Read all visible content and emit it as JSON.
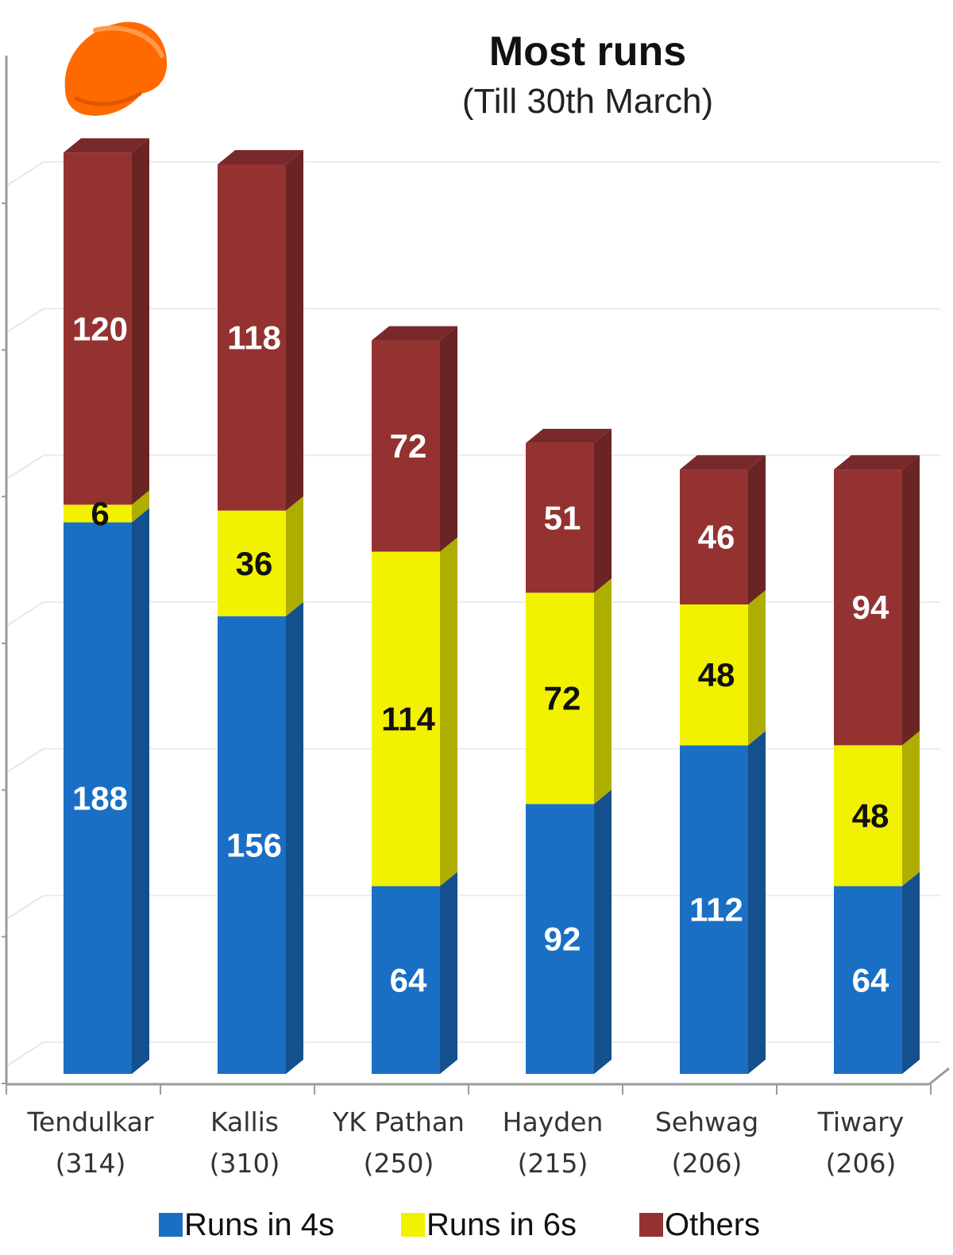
{
  "chart_data": {
    "type": "bar",
    "stacked": true,
    "title": "Most runs",
    "subtitle": "(Till 30th  March)",
    "categories": [
      "Tendulkar",
      "Kallis",
      "YK Pathan",
      "Hayden",
      "Sehwag",
      "Tiwary"
    ],
    "category_totals": [
      "(314)",
      "(310)",
      "(250)",
      "(215)",
      "(206)",
      "(206)"
    ],
    "series": [
      {
        "name": "Runs in 4s",
        "values": [
          188,
          156,
          64,
          92,
          112,
          64
        ],
        "color": "#1a6fc4",
        "label_color": "#ffffff"
      },
      {
        "name": "Runs in 6s",
        "values": [
          6,
          36,
          114,
          72,
          48,
          48
        ],
        "color": "#f2f200",
        "label_color": "#111111"
      },
      {
        "name": "Others",
        "values": [
          120,
          118,
          72,
          51,
          46,
          94
        ],
        "color": "#943232",
        "label_color": "#ffffff"
      }
    ],
    "ylim": [
      0,
      320
    ],
    "grid": true,
    "legend_position": "bottom",
    "icon": "orange-cap-icon"
  }
}
